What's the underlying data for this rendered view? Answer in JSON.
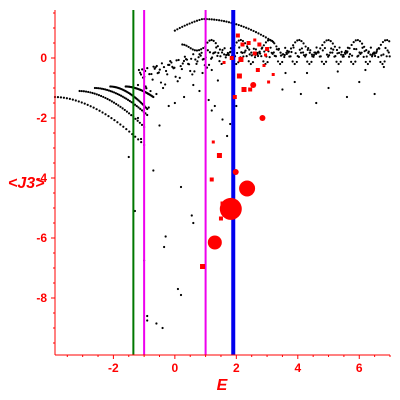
{
  "chart_data": {
    "type": "scatter",
    "xlabel": "E",
    "ylabel": "<J3>",
    "xlim": [
      -3.9,
      7.0
    ],
    "ylim": [
      -9.9,
      1.6
    ],
    "xticks": [
      -2,
      0,
      2,
      4,
      6
    ],
    "yticks": [
      0,
      -2,
      -4,
      -6,
      -8
    ],
    "xtick_labels": [
      "-2",
      "0",
      "2",
      "4",
      "6"
    ],
    "ytick_labels": [
      "0",
      "-2",
      "-4",
      "-6",
      "-8"
    ],
    "colors": {
      "axis": "#ff0000",
      "points": "#000000",
      "highlight": "#ff0000",
      "line_green": "#007700",
      "line_magenta": "#ee00ee",
      "line_blue": "#0000ee"
    },
    "vertical_lines": [
      {
        "x": -1.35,
        "color": "#007700",
        "width": 2
      },
      {
        "x": -1.0,
        "color": "#ee00ee",
        "width": 2
      },
      {
        "x": 1.0,
        "color": "#ee00ee",
        "width": 2
      },
      {
        "x": 1.9,
        "color": "#0000ee",
        "width": 4
      }
    ],
    "highlight_points": [
      {
        "x": 1.82,
        "y": -5.03,
        "r": 11
      },
      {
        "x": 2.35,
        "y": -4.35,
        "r": 8
      },
      {
        "x": 1.3,
        "y": -6.15,
        "r": 7
      },
      {
        "x": 1.98,
        "y": -3.8,
        "r": 3
      },
      {
        "x": 1.45,
        "y": -3.25,
        "r": 2.5
      },
      {
        "x": 1.2,
        "y": -4.05,
        "r": 2
      },
      {
        "x": 1.55,
        "y": -4.85,
        "r": 2
      },
      {
        "x": 1.5,
        "y": -5.35,
        "r": 2
      },
      {
        "x": 0.9,
        "y": -6.95,
        "r": 2.5
      },
      {
        "x": 1.25,
        "y": -2.8,
        "r": 1.5
      },
      {
        "x": 2.85,
        "y": -2.0,
        "r": 3
      },
      {
        "x": 2.55,
        "y": -0.9,
        "r": 3
      },
      {
        "x": 2.1,
        "y": -0.6,
        "r": 2.5
      },
      {
        "x": 2.7,
        "y": -0.4,
        "r": 2
      },
      {
        "x": 2.25,
        "y": -1.05,
        "r": 2.5
      },
      {
        "x": 2.45,
        "y": -1.05,
        "r": 2
      },
      {
        "x": 1.95,
        "y": -1.3,
        "r": 2
      },
      {
        "x": 1.85,
        "y": 0.0,
        "r": 2
      },
      {
        "x": 2.4,
        "y": 0.5,
        "r": 2
      },
      {
        "x": 2.2,
        "y": 0.45,
        "r": 2
      },
      {
        "x": 2.75,
        "y": 0.45,
        "r": 2
      },
      {
        "x": 3.0,
        "y": 0.3,
        "r": 2
      },
      {
        "x": 2.6,
        "y": 0.15,
        "r": 2
      },
      {
        "x": 2.05,
        "y": 0.75,
        "r": 2
      },
      {
        "x": 2.15,
        "y": -0.05,
        "r": 2.5
      },
      {
        "x": 2.6,
        "y": 0.6,
        "r": 1.5
      },
      {
        "x": 2.9,
        "y": -0.25,
        "r": 1.5
      },
      {
        "x": 3.05,
        "y": -0.8,
        "r": 1.5
      },
      {
        "x": 3.2,
        "y": -0.55,
        "r": 1.5
      },
      {
        "x": 2.95,
        "y": 0.1,
        "r": 1.5
      },
      {
        "x": 1.6,
        "y": -0.15,
        "r": 1.5
      }
    ],
    "background_points": [
      [
        -0.95,
        -0.95
      ],
      [
        -0.85,
        -1.65
      ],
      [
        -0.5,
        -2.25
      ],
      [
        -0.7,
        -3.75
      ],
      [
        0.2,
        -4.3
      ],
      [
        -1.3,
        -5.1
      ],
      [
        -1.0,
        -6.75
      ],
      [
        -0.3,
        -5.95
      ],
      [
        -0.35,
        -6.3
      ],
      [
        0.1,
        -7.7
      ],
      [
        0.2,
        -7.9
      ],
      [
        -0.9,
        -8.6
      ],
      [
        -0.9,
        -8.75
      ],
      [
        -0.6,
        -8.85
      ],
      [
        -0.4,
        -9.0
      ],
      [
        1.4,
        -0.75
      ],
      [
        1.3,
        -1.6
      ],
      [
        1.2,
        -1.75
      ],
      [
        1.55,
        -2.05
      ],
      [
        0.55,
        -5.25
      ],
      [
        0.6,
        -5.5
      ],
      [
        3.6,
        -0.5
      ],
      [
        3.9,
        -0.8
      ],
      [
        4.1,
        -1.2
      ],
      [
        4.6,
        -1.5
      ],
      [
        5.0,
        -1.0
      ],
      [
        5.6,
        -1.3
      ],
      [
        6.0,
        -0.8
      ],
      [
        6.5,
        -1.2
      ],
      [
        3.5,
        -1.05
      ],
      [
        4.3,
        -0.5
      ],
      [
        5.3,
        -0.45
      ],
      [
        6.2,
        -0.4
      ],
      [
        6.8,
        -0.3
      ],
      [
        2.0,
        -1.6
      ],
      [
        1.8,
        -2.2
      ],
      [
        1.7,
        -2.6
      ],
      [
        1.1,
        -1.4
      ],
      [
        0.8,
        -1.1
      ],
      [
        0.6,
        -0.9
      ],
      [
        0.9,
        -0.5
      ],
      [
        1.2,
        -0.4
      ],
      [
        0.3,
        -1.3
      ],
      [
        0.0,
        -1.5
      ],
      [
        -0.2,
        -1.6
      ],
      [
        -0.6,
        -1.2
      ],
      [
        -1.2,
        -2.0
      ],
      [
        -1.1,
        -2.7
      ],
      [
        -1.5,
        -3.3
      ]
    ]
  }
}
